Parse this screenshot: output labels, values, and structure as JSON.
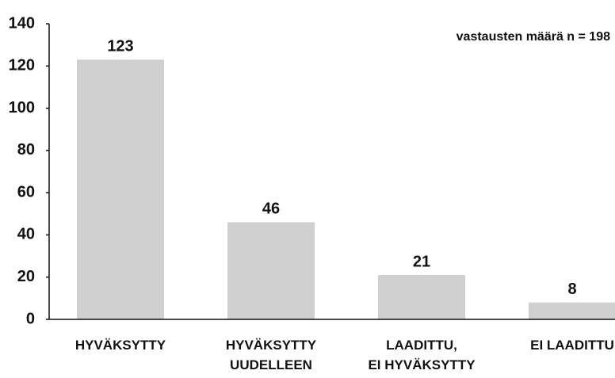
{
  "chart_data": {
    "type": "bar",
    "annotation": "vastausten määrä n = 198",
    "categories": [
      "HYVÄKSYTTY",
      "HYVÄKSYTTY\nUUDELLEEN",
      "LAADITTU,\nEI HYVÄKSYTTY",
      "EI LAADITTU"
    ],
    "values": [
      123,
      46,
      21,
      8
    ],
    "color": "#d0d0d0",
    "ylim": [
      0,
      140
    ],
    "yticks": [
      0,
      20,
      40,
      60,
      80,
      100,
      120,
      140
    ],
    "grid": false
  }
}
